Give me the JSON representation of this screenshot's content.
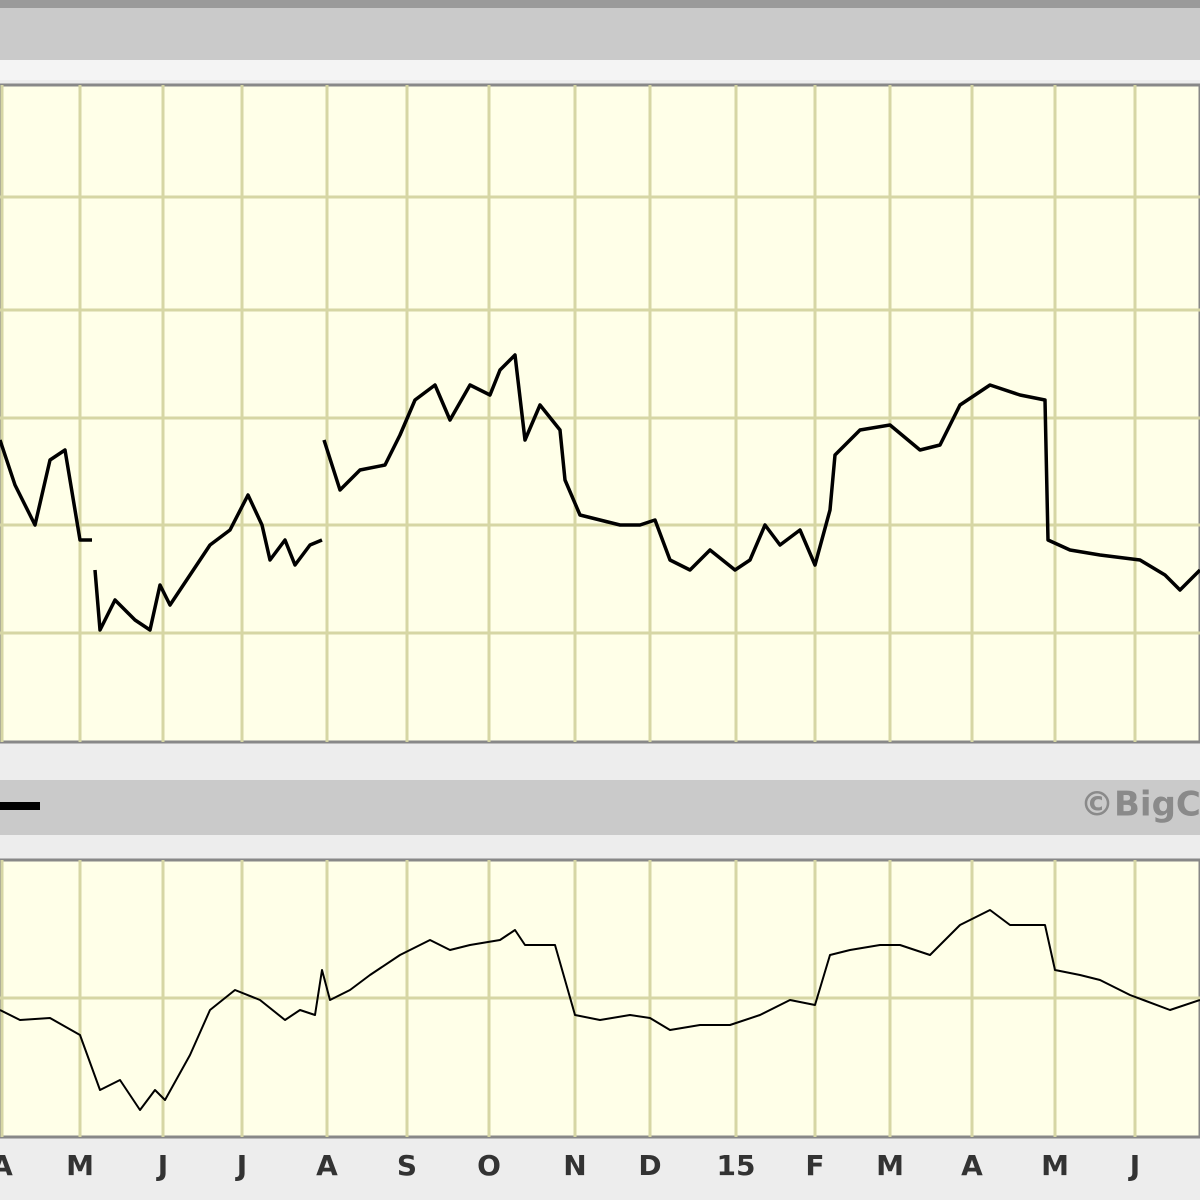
{
  "chart_data": [
    {
      "type": "line",
      "xlim": [
        0,
        1200
      ],
      "ylim": [
        0,
        657
      ],
      "yticks": [
        109,
        217,
        324,
        432,
        545
      ],
      "grid": true,
      "series": [
        {
          "color": "#000000",
          "x": [
            0,
            15,
            35,
            50,
            65,
            80,
            92,
            null,
            95,
            100,
            115,
            135,
            150,
            160,
            170,
            190,
            210,
            230,
            248,
            262,
            270,
            285,
            295,
            310,
            322,
            null,
            324,
            340,
            360,
            385,
            400,
            415,
            435,
            450,
            470,
            490,
            500,
            515,
            525,
            540,
            560,
            565,
            580,
            600,
            620,
            640,
            655,
            670,
            690,
            710,
            735,
            750,
            765,
            780,
            800,
            815,
            830,
            835,
            860,
            890,
            920,
            940,
            960,
            990,
            1020,
            1045,
            1048,
            1070,
            1100,
            1140,
            1165,
            1180,
            1200
          ],
          "values": [
            302,
            257,
            217,
            282,
            292,
            202,
            202,
            null,
            172,
            112,
            142,
            122,
            112,
            157,
            137,
            167,
            197,
            212,
            247,
            217,
            182,
            202,
            177,
            197,
            202,
            null,
            302,
            252,
            272,
            277,
            307,
            342,
            357,
            322,
            357,
            347,
            372,
            387,
            302,
            337,
            312,
            262,
            227,
            222,
            217,
            217,
            222,
            182,
            172,
            192,
            172,
            182,
            217,
            197,
            212,
            177,
            232,
            287,
            312,
            317,
            292,
            297,
            337,
            357,
            347,
            342,
            202,
            192,
            187,
            182,
            167,
            152,
            172
          ]
        }
      ]
    },
    {
      "type": "line",
      "xlim": [
        0,
        1200
      ],
      "ylim": [
        0,
        277
      ],
      "yticks": [
        139
      ],
      "grid": true,
      "annotation": "©BigC",
      "xticks": [
        {
          "value": 2,
          "label": "A"
        },
        {
          "value": 80,
          "label": "M"
        },
        {
          "value": 163,
          "label": "J"
        },
        {
          "value": 242,
          "label": "J"
        },
        {
          "value": 327,
          "label": "A"
        },
        {
          "value": 407,
          "label": "S"
        },
        {
          "value": 489,
          "label": "O"
        },
        {
          "value": 575,
          "label": "N"
        },
        {
          "value": 650,
          "label": "D"
        },
        {
          "value": 736,
          "label": "15"
        },
        {
          "value": 815,
          "label": "F"
        },
        {
          "value": 890,
          "label": "M"
        },
        {
          "value": 972,
          "label": "A"
        },
        {
          "value": 1055,
          "label": "M"
        },
        {
          "value": 1135,
          "label": "J"
        }
      ],
      "series": [
        {
          "color": "#000000",
          "x": [
            0,
            20,
            50,
            80,
            100,
            120,
            140,
            155,
            165,
            190,
            210,
            235,
            260,
            285,
            300,
            315,
            322,
            330,
            350,
            370,
            400,
            430,
            450,
            470,
            500,
            515,
            525,
            555,
            575,
            600,
            630,
            650,
            670,
            700,
            730,
            760,
            790,
            815,
            830,
            850,
            880,
            900,
            930,
            960,
            990,
            1010,
            1045,
            1055,
            1080,
            1100,
            1130,
            1170,
            1200
          ],
          "values": [
            127,
            117,
            119,
            102,
            47,
            57,
            27,
            47,
            37,
            82,
            127,
            147,
            137,
            117,
            127,
            122,
            167,
            137,
            147,
            162,
            182,
            197,
            187,
            192,
            197,
            207,
            192,
            192,
            122,
            117,
            122,
            119,
            107,
            112,
            112,
            122,
            137,
            132,
            182,
            187,
            192,
            192,
            182,
            212,
            227,
            212,
            212,
            167,
            162,
            157,
            142,
            127,
            137
          ]
        }
      ]
    }
  ]
}
